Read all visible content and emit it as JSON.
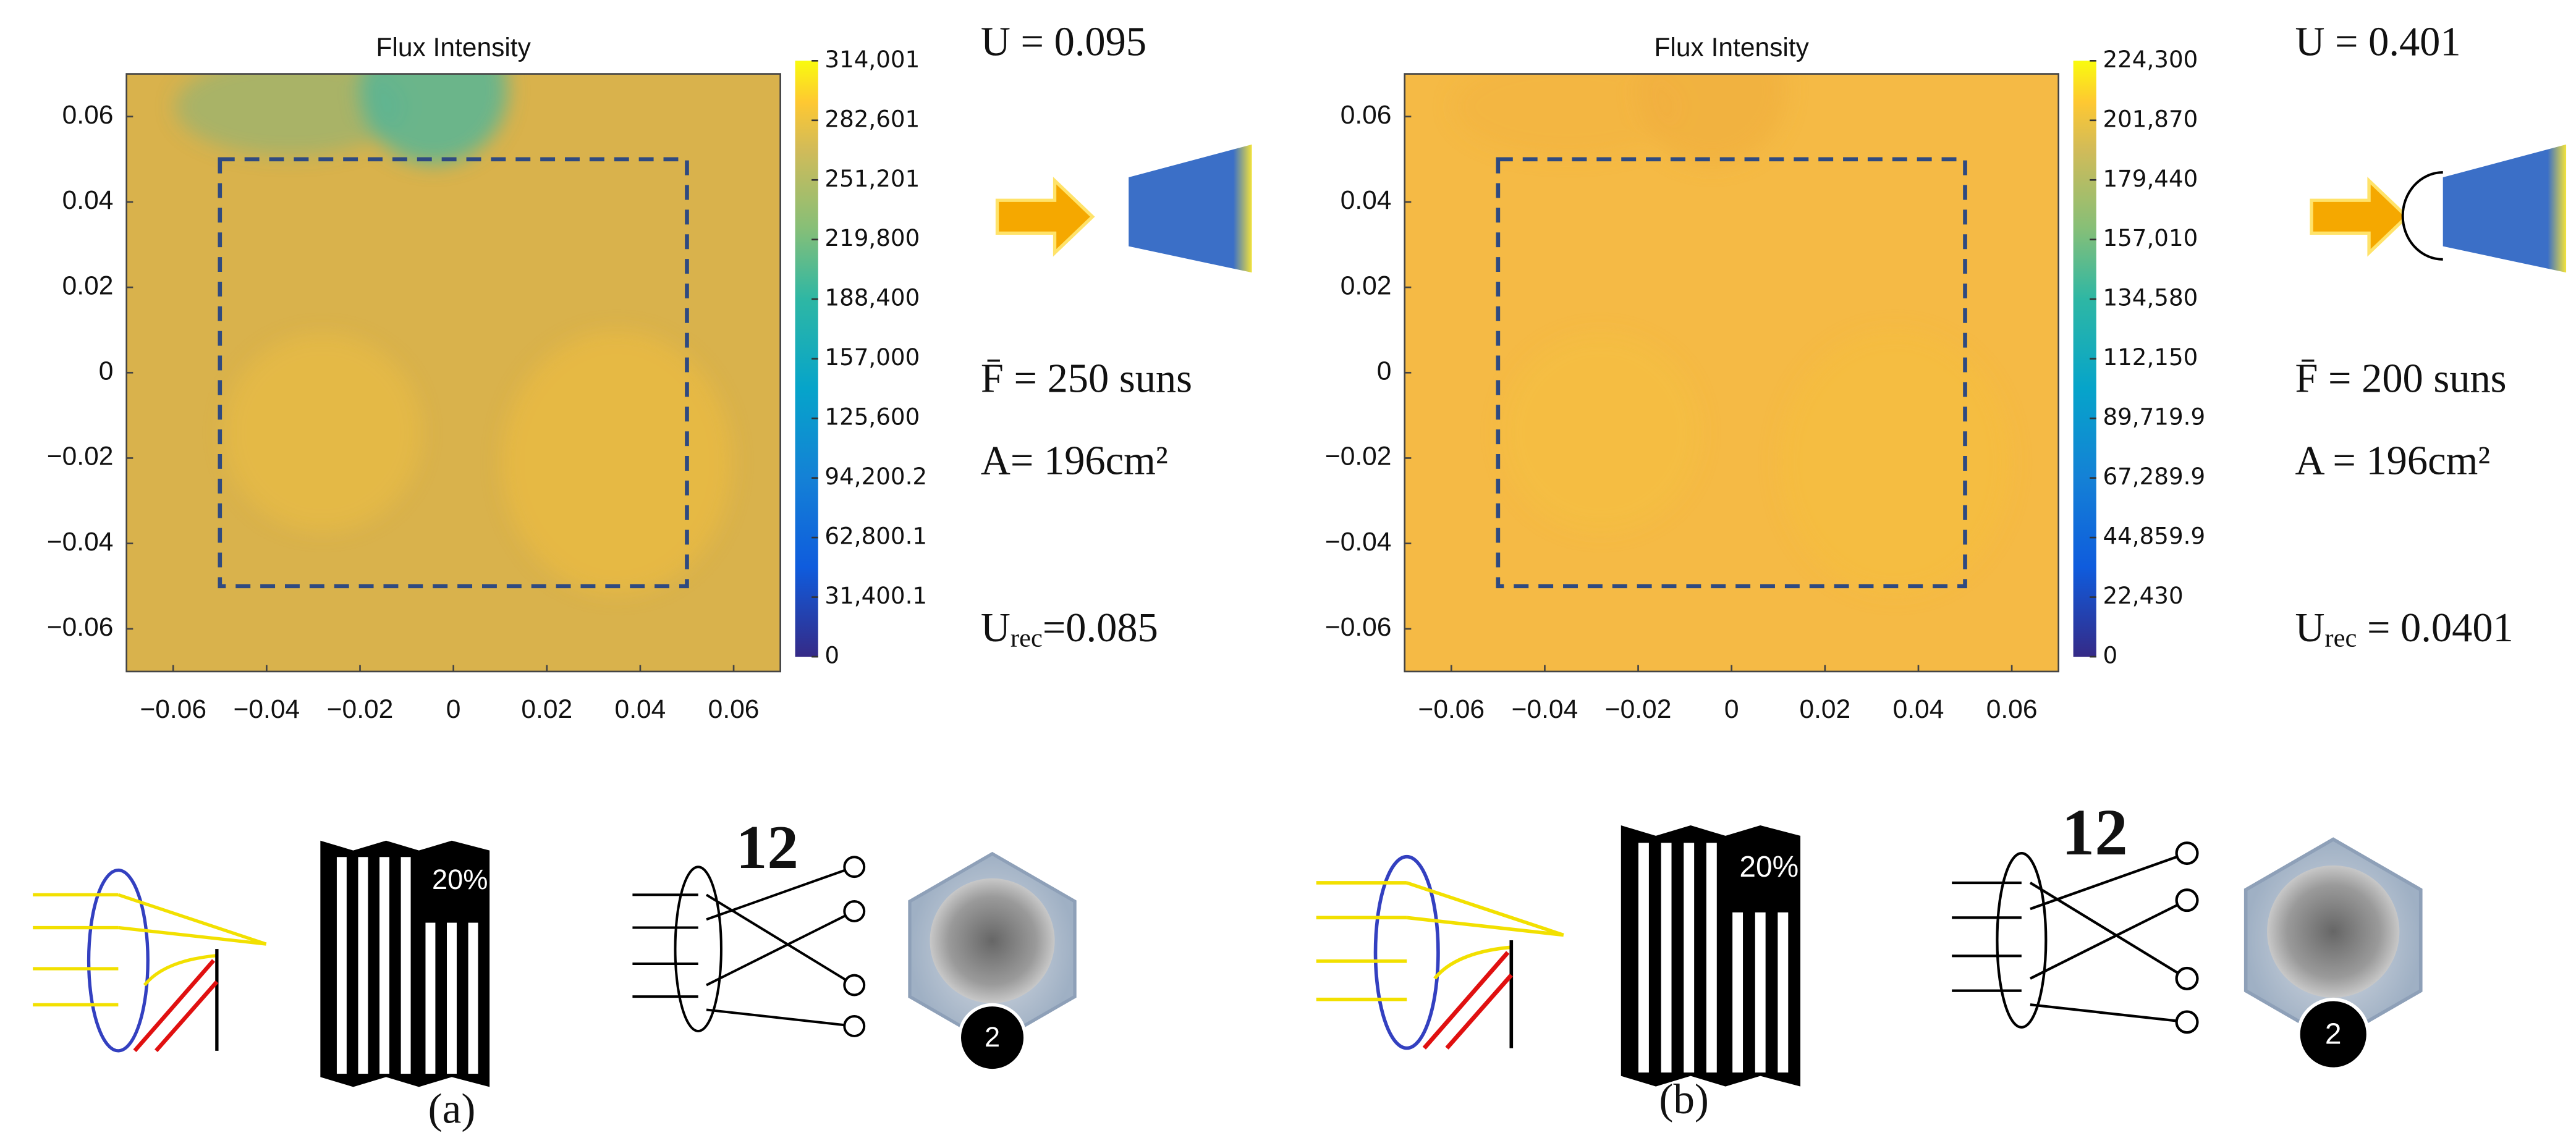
{
  "chart_data": [
    {
      "type": "heatmap",
      "title": "Flux Intensity",
      "field_color": "#d9b24c",
      "highlight_color": "#4fb59a",
      "colormap": "parula",
      "xlim": [
        -0.07,
        0.07
      ],
      "ylim": [
        -0.07,
        0.07
      ],
      "xticks": [
        {
          "value": -0.06,
          "label": "−0.06"
        },
        {
          "value": -0.04,
          "label": "−0.04"
        },
        {
          "value": -0.02,
          "label": "−0.02"
        },
        0,
        0.02,
        0.04,
        0.06
      ],
      "yticks": [
        {
          "value": -0.06,
          "label": "−0.06"
        },
        {
          "value": -0.04,
          "label": "−0.04"
        },
        {
          "value": -0.02,
          "label": "−0.02"
        },
        0,
        0.02,
        0.04,
        0.06
      ],
      "dashed_box": {
        "xlim": [
          -0.05,
          0.05
        ],
        "ylim": [
          -0.05,
          0.05
        ]
      },
      "clim": [
        0,
        314001
      ],
      "cticks": [
        {
          "value": 0,
          "label": "0"
        },
        {
          "value": 31400.1,
          "label": "31,400.1"
        },
        {
          "value": 62800.1,
          "label": "62,800.1"
        },
        {
          "value": 94200.2,
          "label": "94,200.2"
        },
        {
          "value": 125600,
          "label": "125,600"
        },
        {
          "value": 157000,
          "label": "157,000"
        },
        {
          "value": 188400,
          "label": "188,400"
        },
        {
          "value": 219800,
          "label": "219,800"
        },
        {
          "value": 251201,
          "label": "251,201"
        },
        {
          "value": 282601,
          "label": "282,601"
        },
        {
          "value": 314001,
          "label": "314,001"
        }
      ],
      "annotations": [
        "U = 0.095",
        "F̄ = 250 suns",
        "A= 196cm²"
      ],
      "u_rec": {
        "symbol": "U",
        "subscript": "rec",
        "text": "=0.085"
      },
      "icons": {
        "efficiency": "20%",
        "lens_count": "12",
        "badge": "2"
      },
      "panel_label": "(a)"
    },
    {
      "type": "heatmap",
      "title": "Flux Intensity",
      "field_color": "#f5ba45",
      "highlight_color": "#f0b040",
      "colormap": "parula",
      "xlim": [
        -0.07,
        0.07
      ],
      "ylim": [
        -0.07,
        0.07
      ],
      "xticks": [
        {
          "value": -0.06,
          "label": "−0.06"
        },
        {
          "value": -0.04,
          "label": "−0.04"
        },
        {
          "value": -0.02,
          "label": "−0.02"
        },
        0,
        0.02,
        0.04,
        0.06
      ],
      "yticks": [
        {
          "value": -0.06,
          "label": "−0.06"
        },
        {
          "value": -0.04,
          "label": "−0.04"
        },
        {
          "value": -0.02,
          "label": "−0.02"
        },
        0,
        0.02,
        0.04,
        0.06
      ],
      "dashed_box": {
        "xlim": [
          -0.05,
          0.05
        ],
        "ylim": [
          -0.05,
          0.05
        ]
      },
      "clim": [
        0,
        224300
      ],
      "cticks": [
        {
          "value": 0,
          "label": "0"
        },
        {
          "value": 22430,
          "label": "22,430"
        },
        {
          "value": 44859.9,
          "label": "44,859.9"
        },
        {
          "value": 67289.9,
          "label": "67,289.9"
        },
        {
          "value": 89719.9,
          "label": "89,719.9"
        },
        {
          "value": 112150,
          "label": "112,150"
        },
        {
          "value": 134580,
          "label": "134,580"
        },
        {
          "value": 157010,
          "label": "157,010"
        },
        {
          "value": 179440,
          "label": "179,440"
        },
        {
          "value": 201870,
          "label": "201,870"
        },
        {
          "value": 224300,
          "label": "224,300"
        }
      ],
      "annotations": [
        "U = 0.401",
        "F̄ = 200 suns",
        "A = 196cm²"
      ],
      "u_rec": {
        "symbol": "U",
        "subscript": "rec",
        "text": " = 0.0401"
      },
      "icons": {
        "efficiency": "20%",
        "lens_count": "12",
        "badge": "2"
      },
      "panel_label": "(b)"
    }
  ]
}
